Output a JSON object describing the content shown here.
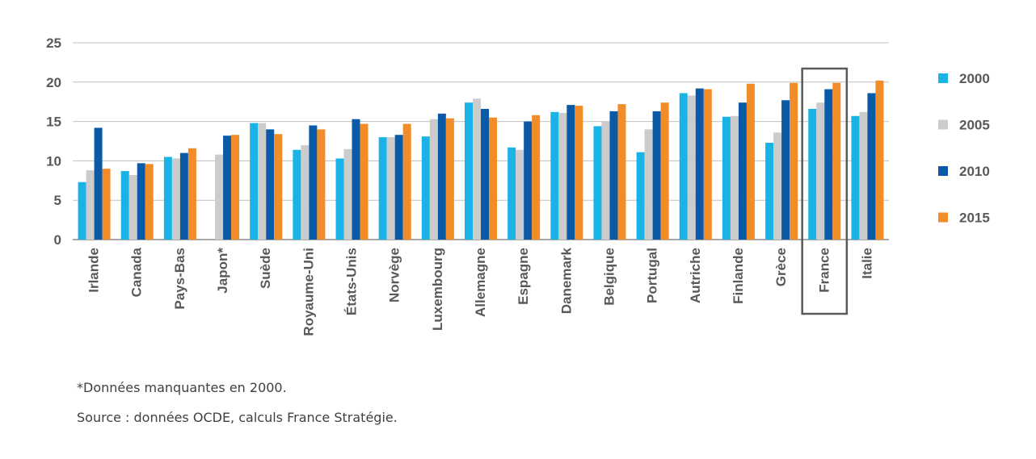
{
  "chart_data": {
    "type": "bar",
    "categories": [
      "Irlande",
      "Canada",
      "Pays-Bas",
      "Japon*",
      "Suède",
      "Royaume-Uni",
      "États-Unis",
      "Norvège",
      "Luxembourg",
      "Allemagne",
      "Espagne",
      "Danemark",
      "Belgique",
      "Portugal",
      "Autriche",
      "Finlande",
      "Grèce",
      "France",
      "Italie"
    ],
    "series": [
      {
        "name": "2000",
        "color": "#1ab3e6",
        "values": [
          7.3,
          8.7,
          10.5,
          null,
          14.8,
          11.4,
          10.3,
          13.0,
          13.1,
          17.4,
          11.7,
          16.2,
          14.4,
          11.1,
          18.6,
          15.6,
          12.3,
          16.6,
          15.7
        ]
      },
      {
        "name": "2005",
        "color": "#cccccc",
        "values": [
          8.8,
          8.2,
          10.3,
          10.8,
          14.8,
          12.0,
          11.5,
          13.0,
          15.3,
          17.9,
          11.4,
          16.1,
          15.0,
          14.0,
          18.3,
          15.7,
          13.6,
          17.4,
          16.2
        ]
      },
      {
        "name": "2010",
        "color": "#0b5aa8",
        "values": [
          14.2,
          9.7,
          11.0,
          13.2,
          14.0,
          14.5,
          15.3,
          13.3,
          16.0,
          16.6,
          15.0,
          17.1,
          16.3,
          16.3,
          19.2,
          17.4,
          17.7,
          19.1,
          18.6
        ]
      },
      {
        "name": "2015",
        "color": "#f28c28",
        "values": [
          9.0,
          9.6,
          11.6,
          13.3,
          13.4,
          14.0,
          14.7,
          14.7,
          15.4,
          15.5,
          15.8,
          17.0,
          17.2,
          17.4,
          19.1,
          19.8,
          19.9,
          19.9,
          20.2
        ]
      }
    ],
    "ylim": [
      0,
      25
    ],
    "yticks": [
      0,
      5,
      10,
      15,
      20,
      25
    ],
    "grid": true,
    "legend_position": "right",
    "highlight": "France"
  },
  "footnotes": {
    "missing": "*Données manquantes en 2000.",
    "source": "Source : données OCDE, calculs France Stratégie."
  }
}
